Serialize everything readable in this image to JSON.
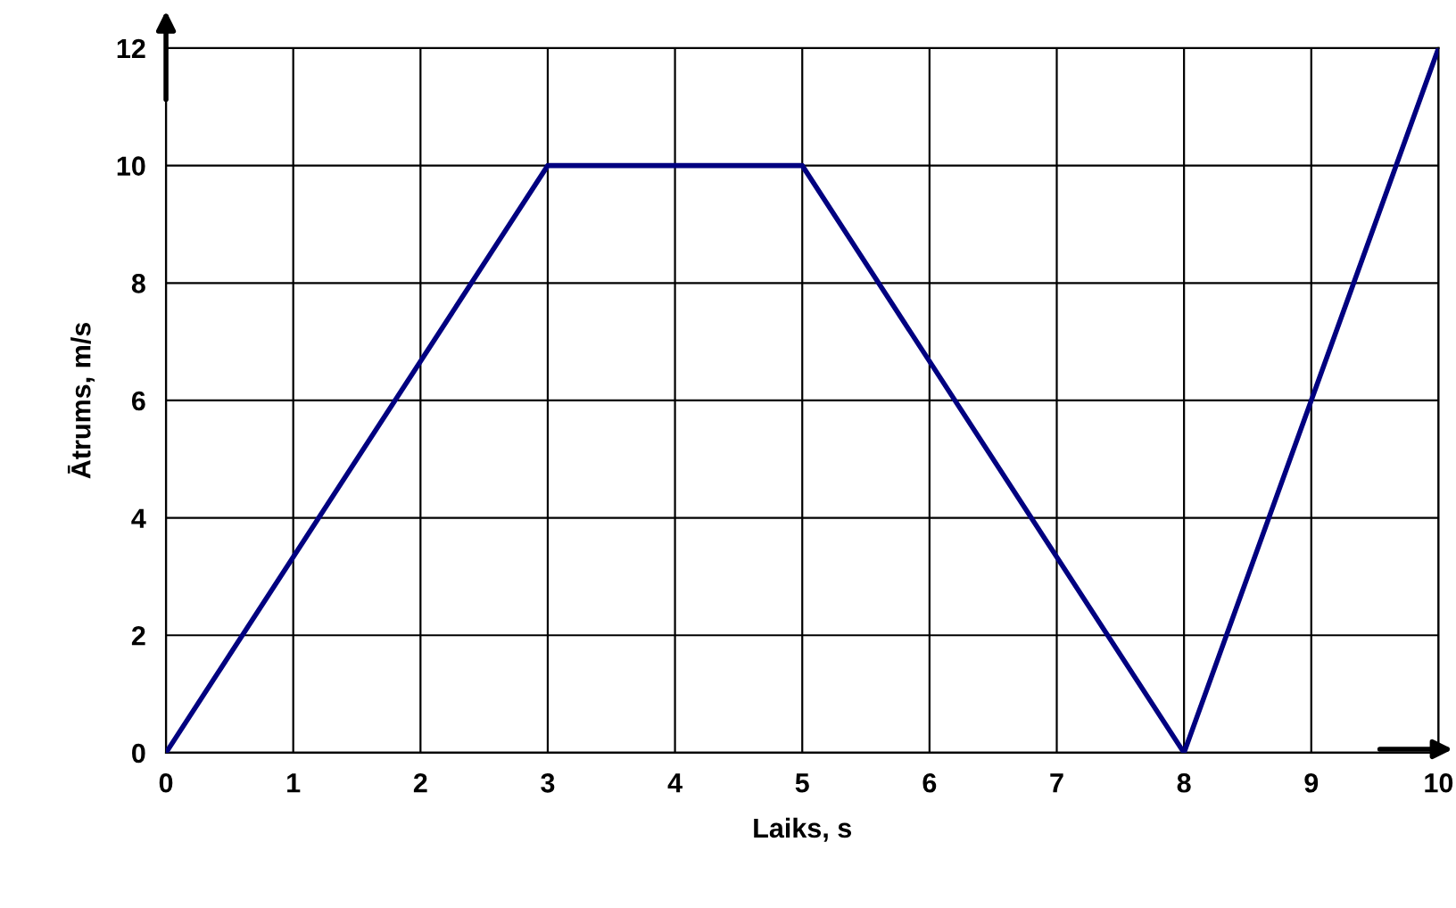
{
  "chart_data": {
    "type": "line",
    "xlabel": "Laiks, s",
    "ylabel": "Ātrums, m/s",
    "series": [
      {
        "color": "#000080",
        "x": [
          0,
          3,
          5,
          8,
          10
        ],
        "values": [
          0,
          10,
          10,
          0,
          12
        ]
      }
    ],
    "xlim": [
      0,
      10
    ],
    "ylim": [
      0,
      12
    ],
    "xticks": [
      0,
      1,
      2,
      3,
      4,
      5,
      6,
      7,
      8,
      9,
      10
    ],
    "yticks": [
      0,
      2,
      4,
      6,
      8,
      10,
      12
    ],
    "grid": true,
    "legend": false,
    "marker": "none",
    "line_style": "solid"
  }
}
